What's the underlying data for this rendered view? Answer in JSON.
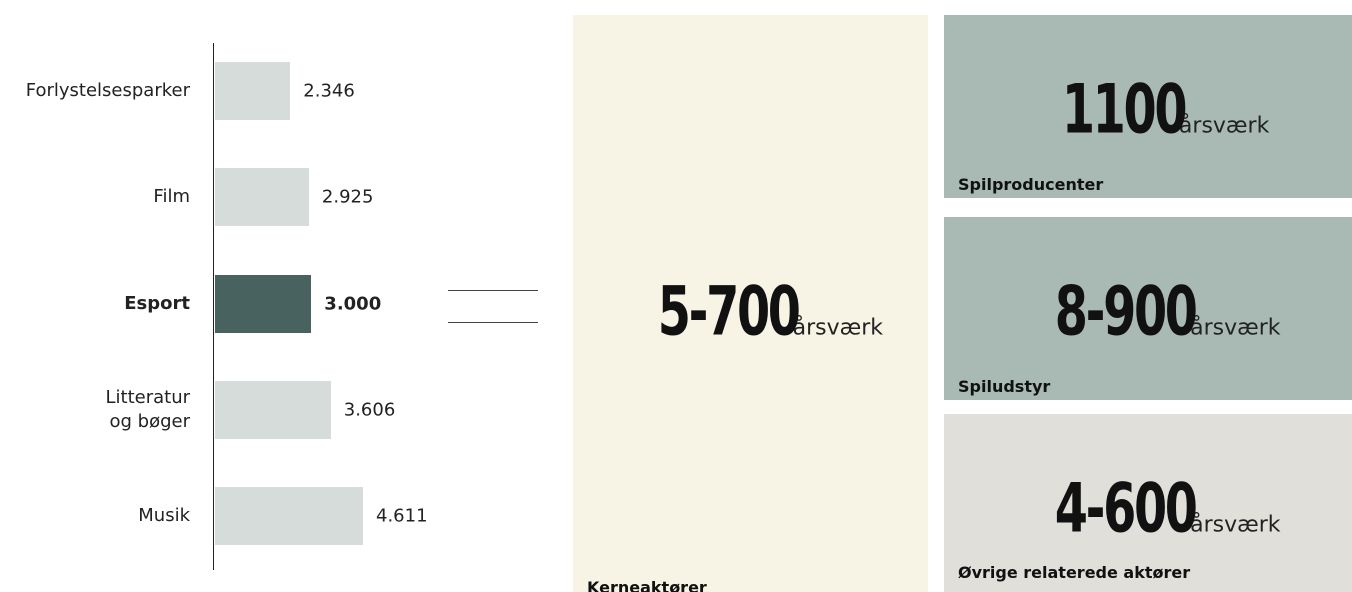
{
  "chart_data": {
    "type": "bar",
    "orientation": "horizontal",
    "categories": [
      "Forlystelsesparker",
      "Film",
      "Esport",
      "Litteratur\nog bøger",
      "Musik"
    ],
    "values": [
      2346,
      2925,
      3000,
      3606,
      4611
    ],
    "value_labels": [
      "2.346",
      "2.925",
      "3.000",
      "3.606",
      "4.611"
    ],
    "color": "#d6dcd9",
    "highlight": "Esport",
    "highlight_color": "#48625f"
  },
  "panels": [
    {
      "value": "5-700",
      "unit": "årsværk",
      "label": "Kerneaktører",
      "color": "#f7f4e6"
    },
    {
      "value": "1100",
      "unit": "årsværk",
      "label": "Spilproducenter",
      "color": "#a9bab4"
    },
    {
      "value": "8-900",
      "unit": "årsværk",
      "label": "Spiludstyr",
      "color": "#a9bab4"
    },
    {
      "value": "4-600",
      "unit": "årsværk",
      "label": "Øvrige relaterede aktører",
      "color": "#e0dfda"
    }
  ]
}
